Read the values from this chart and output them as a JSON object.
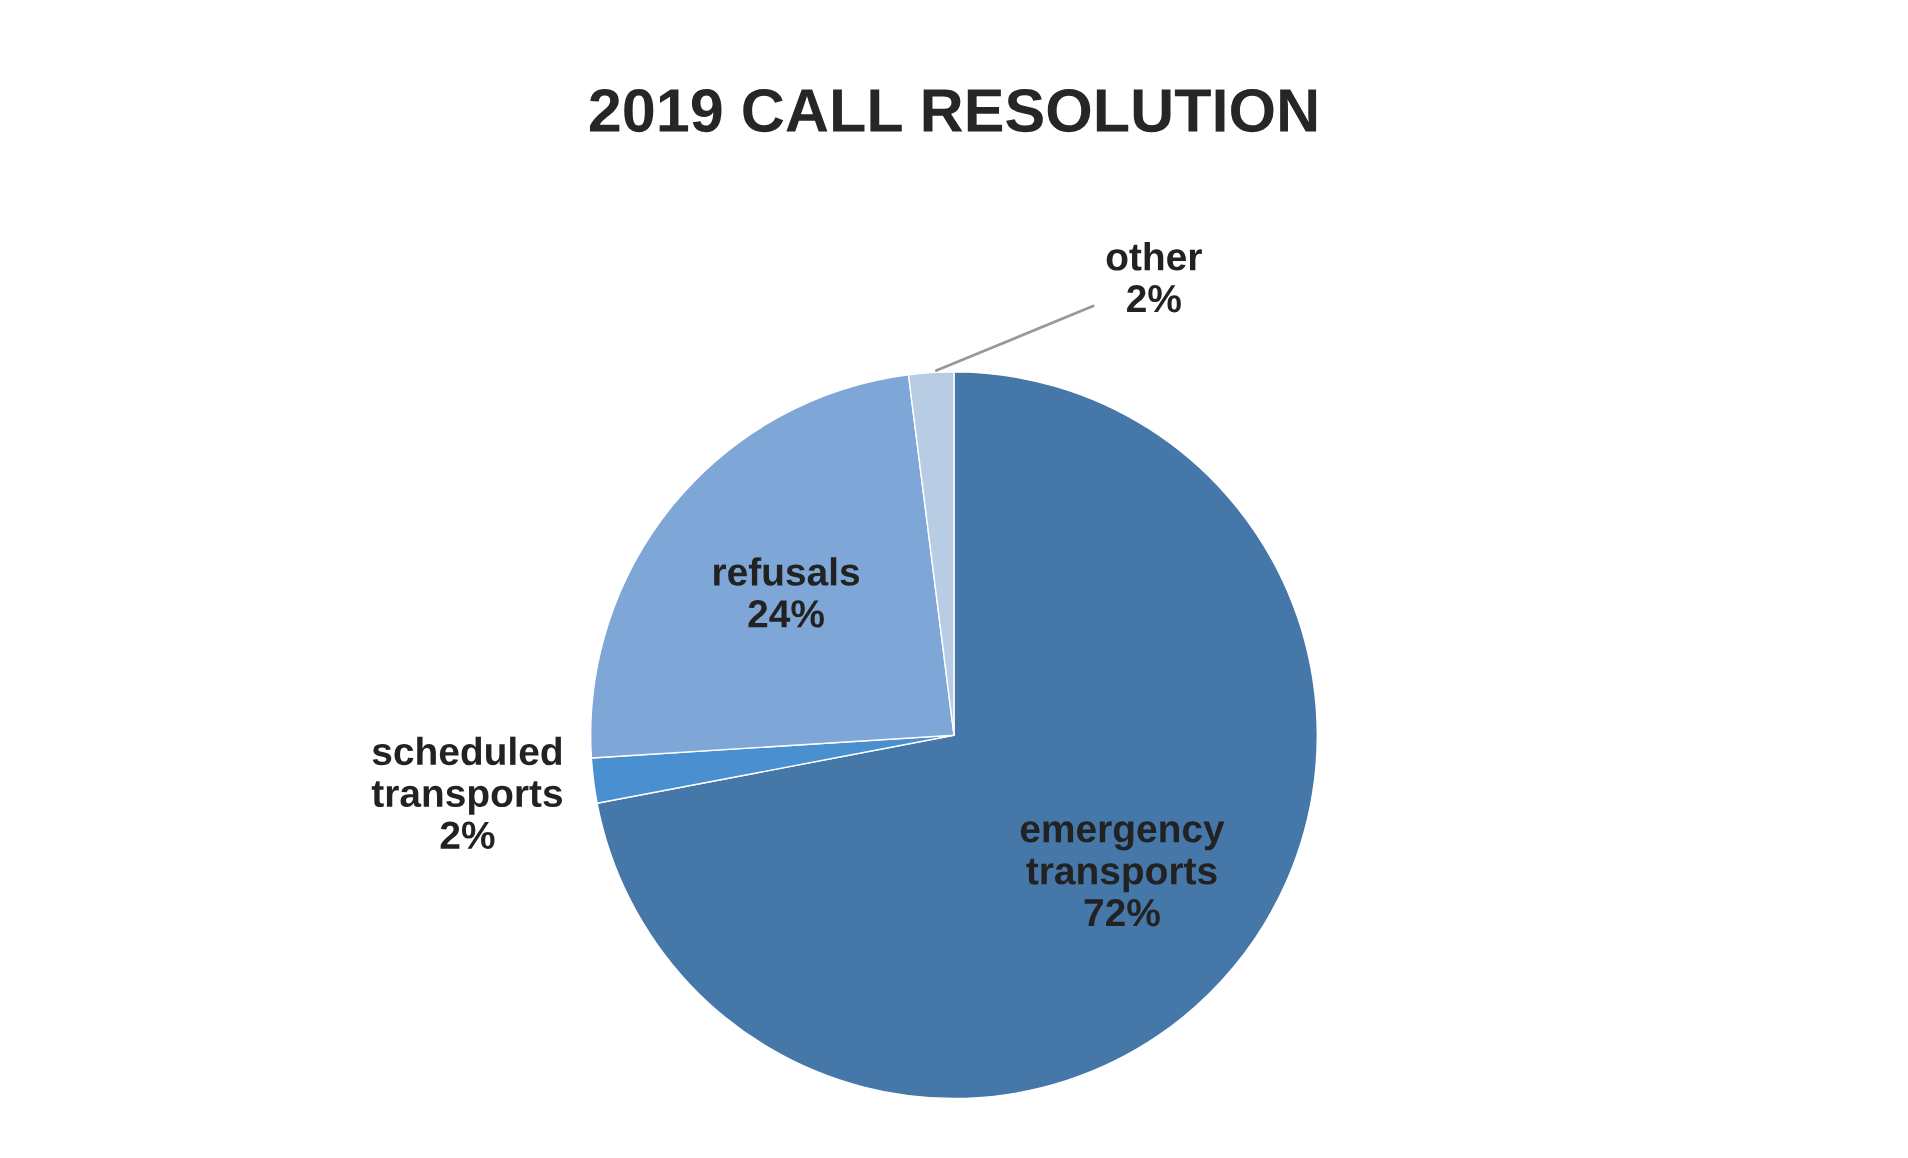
{
  "chart_data": {
    "type": "pie",
    "title": "2019 CALL RESOLUTION",
    "categories": [
      "emergency transports",
      "scheduled transports",
      "refusals",
      "other"
    ],
    "values": [
      72,
      2,
      24,
      2
    ],
    "value_labels": [
      "72%",
      "2%",
      "24%",
      "2%"
    ],
    "colors": [
      "#4577a8",
      "#4a8fd0",
      "#7ea6d6",
      "#b8cce4"
    ],
    "legend": false
  }
}
